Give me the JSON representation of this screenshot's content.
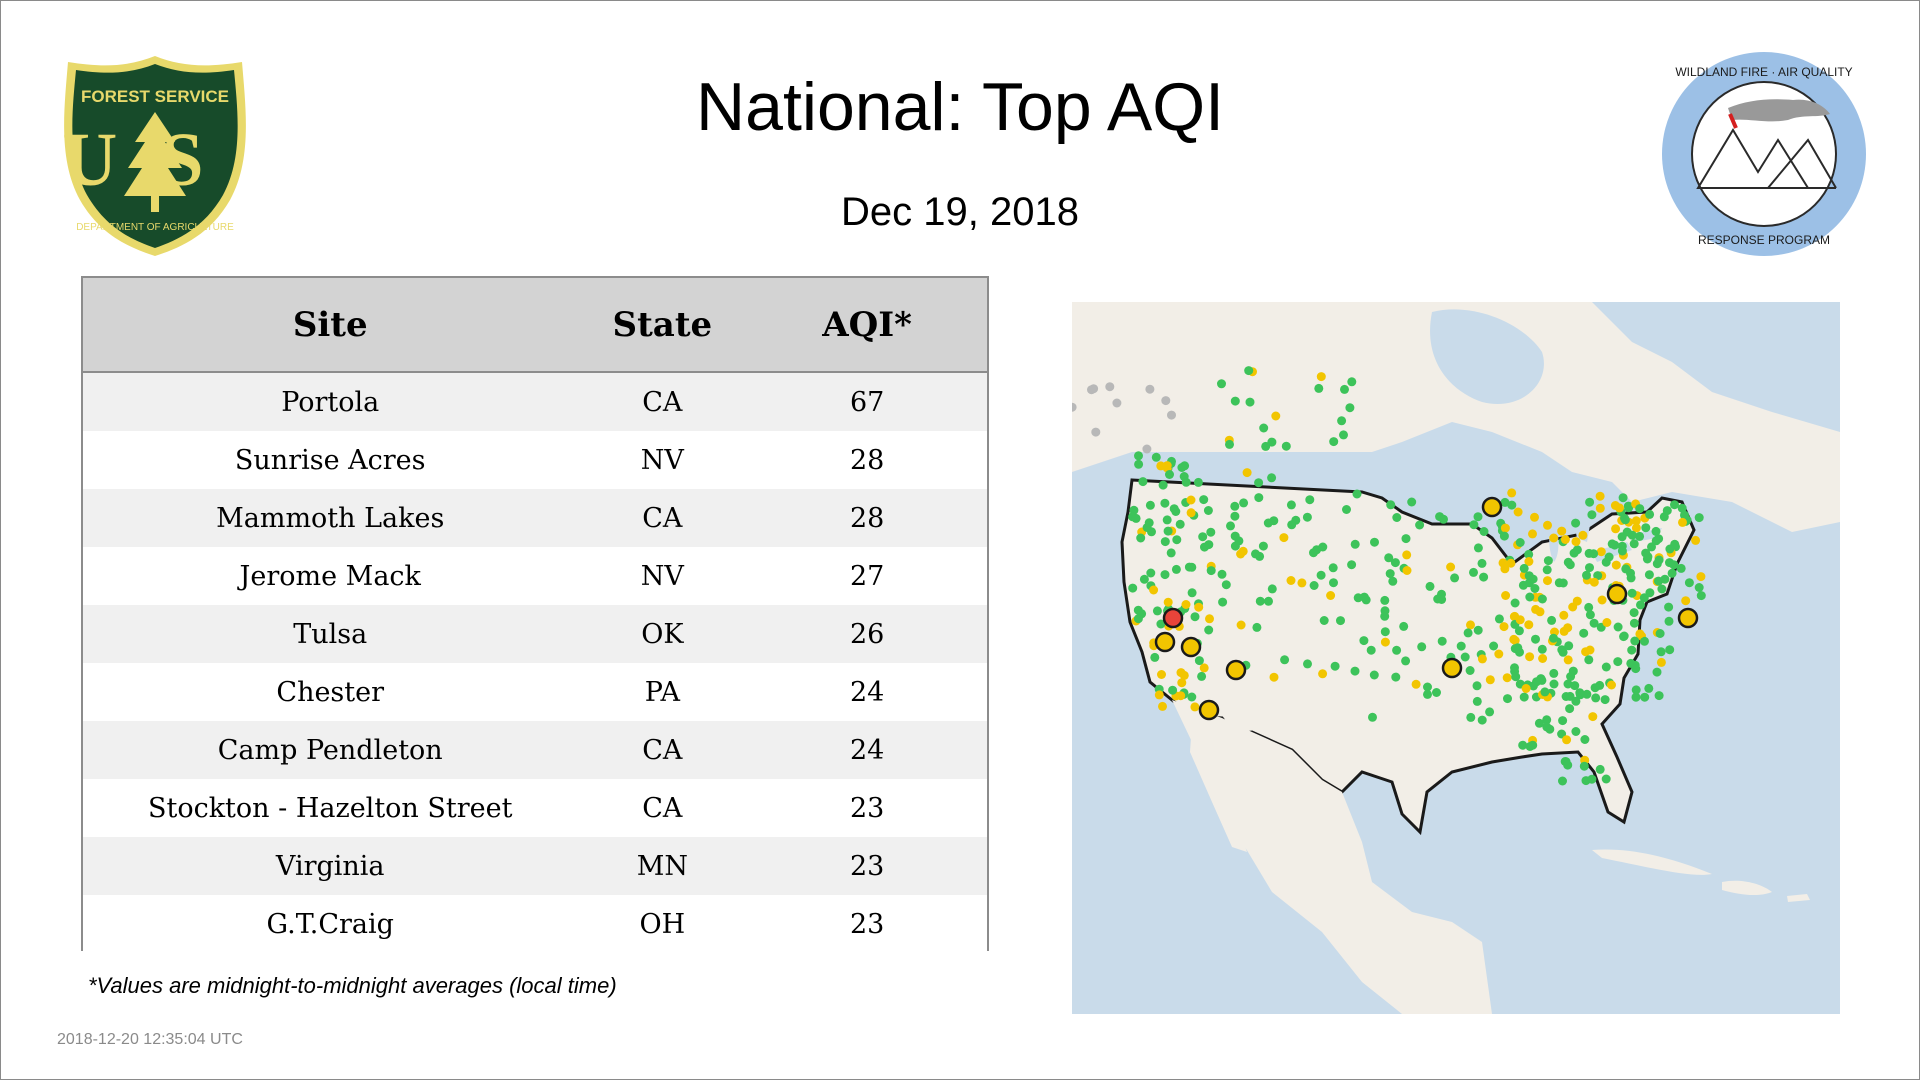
{
  "title": "National: Top AQI",
  "date": "Dec 19, 2018",
  "logos": {
    "usfs": {
      "top": "FOREST SERVICE",
      "letters": "US",
      "bottom": "DEPARTMENT OF AGRICULTURE"
    },
    "wfaq": {
      "top": "WILDLAND FIRE · AIR QUALITY",
      "bottom": "RESPONSE PROGRAM"
    }
  },
  "table": {
    "headers": {
      "site": "Site",
      "state": "State",
      "aqi": "AQI*"
    },
    "rows": [
      {
        "site": "Portola",
        "state": "CA",
        "aqi": "67"
      },
      {
        "site": "Sunrise Acres",
        "state": "NV",
        "aqi": "28"
      },
      {
        "site": "Mammoth Lakes",
        "state": "CA",
        "aqi": "28"
      },
      {
        "site": "Jerome Mack",
        "state": "NV",
        "aqi": "27"
      },
      {
        "site": "Tulsa",
        "state": "OK",
        "aqi": "26"
      },
      {
        "site": "Chester",
        "state": "PA",
        "aqi": "24"
      },
      {
        "site": "Camp Pendleton",
        "state": "CA",
        "aqi": "24"
      },
      {
        "site": "Stockton - Hazelton Street",
        "state": "CA",
        "aqi": "23"
      },
      {
        "site": "Virginia",
        "state": "MN",
        "aqi": "23"
      },
      {
        "site": "G.T.Craig",
        "state": "OH",
        "aqi": "23"
      }
    ]
  },
  "footnote": "*Values are midnight-to-midnight averages (local time)",
  "timestamp": "2018-12-20 12:35:04 UTC",
  "colors": {
    "good": "#3dc35a",
    "moderate": "#f2c500",
    "unhealthy_sensitive": "#f07d22",
    "unhealthy": "#e8443a",
    "no_data": "#b8b8b8",
    "ocean": "#c9dbea",
    "land": "#f2eee7"
  }
}
